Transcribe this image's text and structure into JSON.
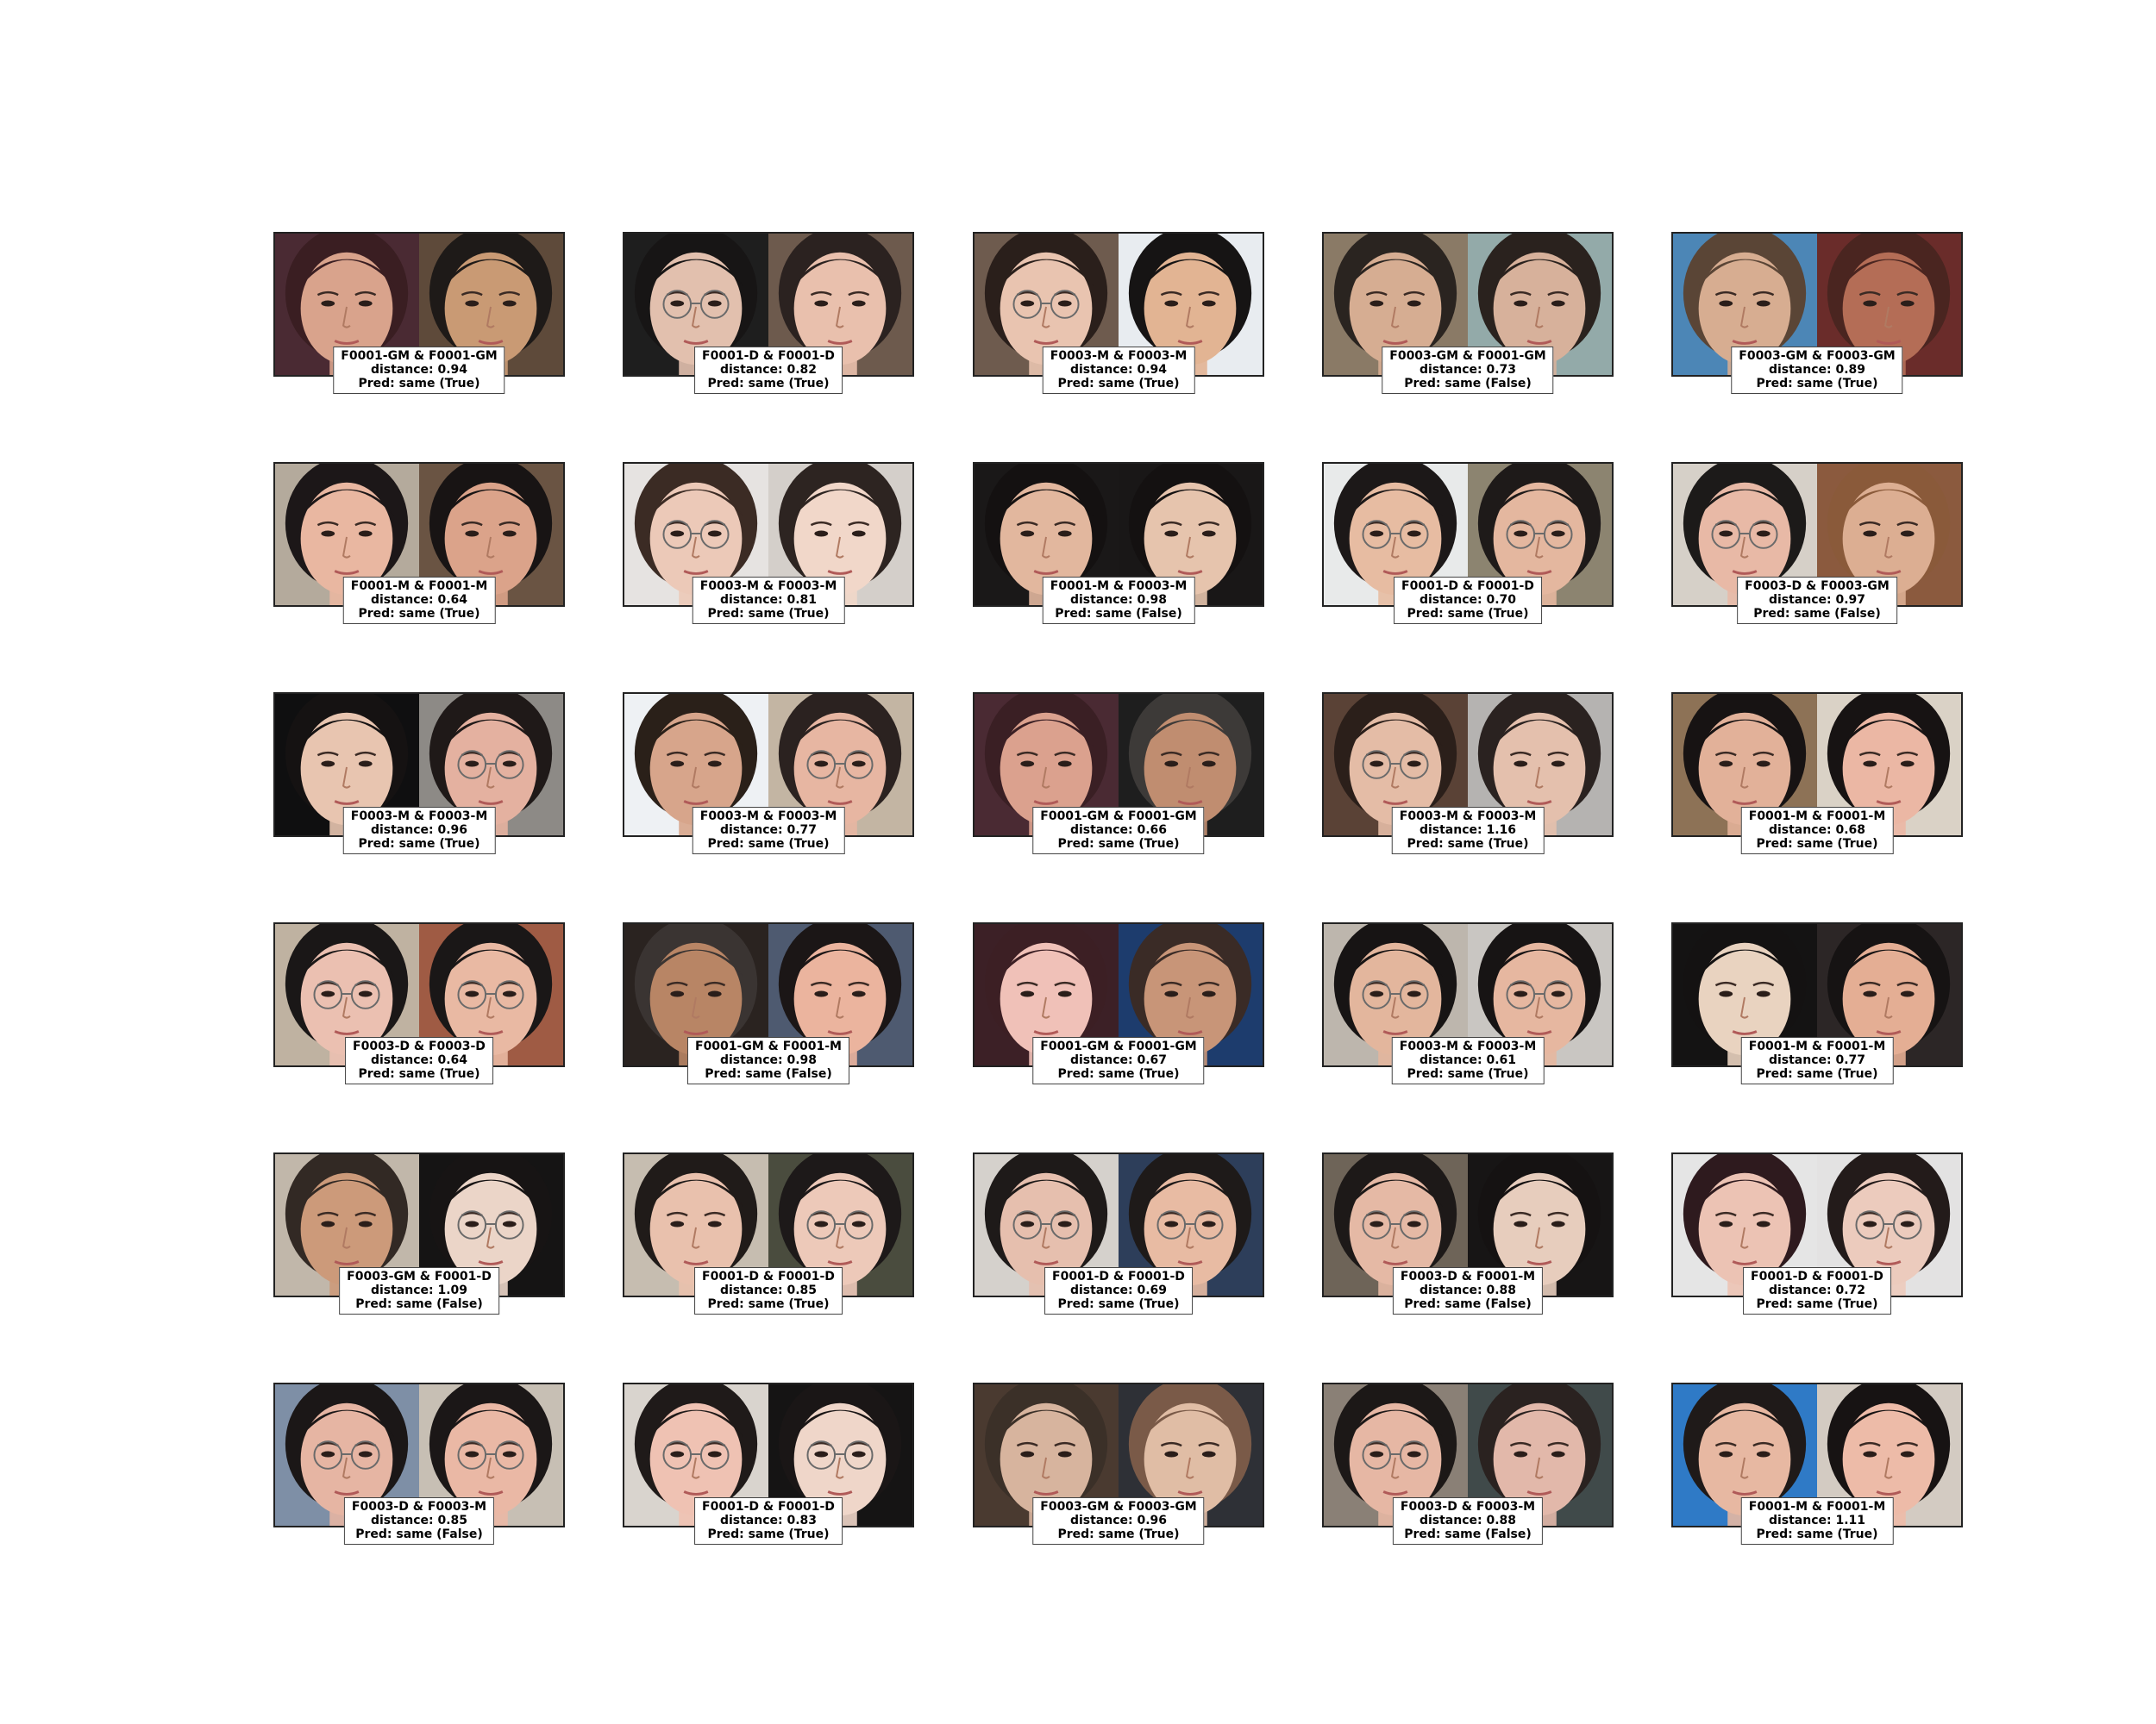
{
  "pairs": [
    {
      "pair": "F0001-GM & F0001-GM",
      "distance": "0.94",
      "pred": "same",
      "correct": "True",
      "faces": [
        {
          "bg": "#4a2a33",
          "skin": "#d9a38c",
          "hair": "#3a1e22"
        },
        {
          "bg": "#5e4a3a",
          "skin": "#c99a74",
          "hair": "#1e1a18"
        }
      ]
    },
    {
      "pair": "F0001-D & F0001-D",
      "distance": "0.82",
      "pred": "same",
      "correct": "True",
      "faces": [
        {
          "bg": "#1e1e1e",
          "skin": "#e2c0ae",
          "hair": "#171515",
          "glasses": true
        },
        {
          "bg": "#6d5a4d",
          "skin": "#e9c0ad",
          "hair": "#2b2220"
        }
      ]
    },
    {
      "pair": "F0003-M & F0003-M",
      "distance": "0.94",
      "pred": "same",
      "correct": "True",
      "faces": [
        {
          "bg": "#6e5b4e",
          "skin": "#e9c4b0",
          "hair": "#2a1f1b",
          "glasses": true
        },
        {
          "bg": "#e8ecf0",
          "skin": "#e2b493",
          "hair": "#161414"
        }
      ]
    },
    {
      "pair": "F0003-GM & F0001-GM",
      "distance": "0.73",
      "pred": "same",
      "correct": "False",
      "faces": [
        {
          "bg": "#8a7a66",
          "skin": "#d6ad92",
          "hair": "#2a2420"
        },
        {
          "bg": "#93aaa9",
          "skin": "#d7b19b",
          "hair": "#2a221e"
        }
      ]
    },
    {
      "pair": "F0003-GM & F0003-GM",
      "distance": "0.89",
      "pred": "same",
      "correct": "True",
      "faces": [
        {
          "bg": "#4c86b6",
          "skin": "#d7ad91",
          "hair": "#5a4536"
        },
        {
          "bg": "#6a2c2a",
          "skin": "#b46d56",
          "hair": "#4a2520"
        }
      ]
    },
    {
      "pair": "F0001-M & F0001-M",
      "distance": "0.64",
      "pred": "same",
      "correct": "True",
      "faces": [
        {
          "bg": "#b4aa9c",
          "skin": "#e9b7a1",
          "hair": "#1c1718"
        },
        {
          "bg": "#6a5443",
          "skin": "#dba38a",
          "hair": "#181414"
        }
      ]
    },
    {
      "pair": "F0003-M & F0003-M",
      "distance": "0.81",
      "pred": "same",
      "correct": "True",
      "faces": [
        {
          "bg": "#e6e3e1",
          "skin": "#ecc9b8",
          "hair": "#3b2b24",
          "glasses": true
        },
        {
          "bg": "#d4cfca",
          "skin": "#f1d7c9",
          "hair": "#2d2421"
        }
      ]
    },
    {
      "pair": "F0001-M & F0003-M",
      "distance": "0.98",
      "pred": "same",
      "correct": "False",
      "faces": [
        {
          "bg": "#1a1818",
          "skin": "#e2b79e",
          "hair": "#141111"
        },
        {
          "bg": "#191717",
          "skin": "#e6c4ad",
          "hair": "#141111"
        }
      ]
    },
    {
      "pair": "F0001-D & F0001-D",
      "distance": "0.70",
      "pred": "same",
      "correct": "True",
      "faces": [
        {
          "bg": "#e8eaea",
          "skin": "#e7bca2",
          "hair": "#1c1818",
          "glasses": true
        },
        {
          "bg": "#8c8470",
          "skin": "#e4b79f",
          "hair": "#1e1a19",
          "glasses": true
        }
      ]
    },
    {
      "pair": "F0003-D & F0003-GM",
      "distance": "0.97",
      "pred": "same",
      "correct": "False",
      "faces": [
        {
          "bg": "#d6d0c8",
          "skin": "#e8b9a6",
          "hair": "#1c1a19",
          "glasses": true
        },
        {
          "bg": "#8b5a3e",
          "skin": "#dcae92",
          "hair": "#8a5a3a"
        }
      ]
    },
    {
      "pair": "F0003-M & F0003-M",
      "distance": "0.96",
      "pred": "same",
      "correct": "True",
      "faces": [
        {
          "bg": "#0f0f10",
          "skin": "#e8c5b0",
          "hair": "#151212"
        },
        {
          "bg": "#8d8a86",
          "skin": "#e4b1a0",
          "hair": "#1f1918",
          "glasses": true
        }
      ]
    },
    {
      "pair": "F0003-M & F0003-M",
      "distance": "0.77",
      "pred": "same",
      "correct": "True",
      "faces": [
        {
          "bg": "#eef1f4",
          "skin": "#d7a58b",
          "hair": "#2a2019"
        },
        {
          "bg": "#c3b5a3",
          "skin": "#e7b6a2",
          "hair": "#2b2220",
          "glasses": true
        }
      ]
    },
    {
      "pair": "F0001-GM & F0001-GM",
      "distance": "0.66",
      "pred": "same",
      "correct": "True",
      "faces": [
        {
          "bg": "#4a2a33",
          "skin": "#dba18e",
          "hair": "#3a1f24"
        },
        {
          "bg": "#1e1e1e",
          "skin": "#c08d70",
          "hair": "#3d3a38"
        }
      ]
    },
    {
      "pair": "F0003-M & F0003-M",
      "distance": "1.16",
      "pred": "same",
      "correct": "True",
      "faces": [
        {
          "bg": "#5a4236",
          "skin": "#e4bca6",
          "hair": "#2b1f1a",
          "glasses": true
        },
        {
          "bg": "#b5b3b1",
          "skin": "#e4c0ad",
          "hair": "#2a2220"
        }
      ]
    },
    {
      "pair": "F0001-M & F0001-M",
      "distance": "0.68",
      "pred": "same",
      "correct": "True",
      "faces": [
        {
          "bg": "#8d7256",
          "skin": "#e2b199",
          "hair": "#171313"
        },
        {
          "bg": "#dad2c6",
          "skin": "#ebb7a4",
          "hair": "#171313"
        }
      ]
    },
    {
      "pair": "F0003-D & F0003-D",
      "distance": "0.64",
      "pred": "same",
      "correct": "True",
      "faces": [
        {
          "bg": "#bfb2a1",
          "skin": "#ebc0b1",
          "hair": "#1a1717",
          "glasses": true
        },
        {
          "bg": "#9f5b44",
          "skin": "#e9b9a3",
          "hair": "#1a1717",
          "glasses": true
        }
      ]
    },
    {
      "pair": "F0001-GM & F0001-M",
      "distance": "0.98",
      "pred": "same",
      "correct": "False",
      "faces": [
        {
          "bg": "#2a2320",
          "skin": "#b88565",
          "hair": "#3a3432"
        },
        {
          "bg": "#4e5a70",
          "skin": "#ebb49e",
          "hair": "#1b1616"
        }
      ]
    },
    {
      "pair": "F0001-GM & F0001-GM",
      "distance": "0.67",
      "pred": "same",
      "correct": "True",
      "faces": [
        {
          "bg": "#3c2026",
          "skin": "#f0c1b8",
          "hair": "#3c1f24"
        },
        {
          "bg": "#1d3c6d",
          "skin": "#c89578",
          "hair": "#3a2b26"
        }
      ]
    },
    {
      "pair": "F0003-M & F0003-M",
      "distance": "0.61",
      "pred": "same",
      "correct": "True",
      "faces": [
        {
          "bg": "#bdb6ad",
          "skin": "#e3b69d",
          "hair": "#171414",
          "glasses": true
        },
        {
          "bg": "#c9c6c2",
          "skin": "#e6b7a0",
          "hair": "#171414",
          "glasses": true
        }
      ]
    },
    {
      "pair": "F0001-M & F0001-M",
      "distance": "0.77",
      "pred": "same",
      "correct": "True",
      "faces": [
        {
          "bg": "#141313",
          "skin": "#e9d3c0",
          "hair": "#141212"
        },
        {
          "bg": "#2c2626",
          "skin": "#e4ae94",
          "hair": "#161313"
        }
      ]
    },
    {
      "pair": "F0003-GM & F0001-D",
      "distance": "1.09",
      "pred": "same",
      "correct": "False",
      "faces": [
        {
          "bg": "#c1b7aa",
          "skin": "#cc9a7a",
          "hair": "#322924"
        },
        {
          "bg": "#151414",
          "skin": "#ebd5c8",
          "hair": "#171414",
          "glasses": true
        }
      ]
    },
    {
      "pair": "F0001-D & F0001-D",
      "distance": "0.85",
      "pred": "same",
      "correct": "True",
      "faces": [
        {
          "bg": "#c6bdb0",
          "skin": "#e9c1ad",
          "hair": "#201b19"
        },
        {
          "bg": "#4a4c3e",
          "skin": "#edc9b9",
          "hair": "#1d1919",
          "glasses": true
        }
      ]
    },
    {
      "pair": "F0001-D & F0001-D",
      "distance": "0.69",
      "pred": "same",
      "correct": "True",
      "faces": [
        {
          "bg": "#d5d1cc",
          "skin": "#e6bfae",
          "hair": "#1e1a19",
          "glasses": true
        },
        {
          "bg": "#2d3e5a",
          "skin": "#e8bba3",
          "hair": "#1e1a19",
          "glasses": true
        }
      ]
    },
    {
      "pair": "F0003-D & F0001-M",
      "distance": "0.88",
      "pred": "same",
      "correct": "False",
      "faces": [
        {
          "bg": "#6e6458",
          "skin": "#e5b9a5",
          "hair": "#1d1918",
          "glasses": true
        },
        {
          "bg": "#171515",
          "skin": "#e7cdbd",
          "hair": "#151212"
        }
      ]
    },
    {
      "pair": "F0001-D & F0001-D",
      "distance": "0.72",
      "pred": "same",
      "correct": "True",
      "faces": [
        {
          "bg": "#e5e5e5",
          "skin": "#ecc3b4",
          "hair": "#2e1a1e"
        },
        {
          "bg": "#e3e2e2",
          "skin": "#eccbbd",
          "hair": "#231b1a",
          "glasses": true
        }
      ]
    },
    {
      "pair": "F0003-D & F0003-M",
      "distance": "0.85",
      "pred": "same",
      "correct": "False",
      "faces": [
        {
          "bg": "#7e8fa6",
          "skin": "#e6b5a3",
          "hair": "#1b1717",
          "glasses": true
        },
        {
          "bg": "#c7bfb4",
          "skin": "#eab8a5",
          "hair": "#1b1717",
          "glasses": true
        }
      ]
    },
    {
      "pair": "F0001-D & F0001-D",
      "distance": "0.83",
      "pred": "same",
      "correct": "True",
      "faces": [
        {
          "bg": "#d9d4ce",
          "skin": "#efc2b3",
          "hair": "#1f1a19",
          "glasses": true
        },
        {
          "bg": "#151414",
          "skin": "#efd6c9",
          "hair": "#1a1616",
          "glasses": true
        }
      ]
    },
    {
      "pair": "F0003-GM & F0003-GM",
      "distance": "0.96",
      "pred": "same",
      "correct": "True",
      "faces": [
        {
          "bg": "#4a3a30",
          "skin": "#d7b49e",
          "hair": "#3b3028"
        },
        {
          "bg": "#2e3036",
          "skin": "#e0bda5",
          "hair": "#7a5a48"
        }
      ]
    },
    {
      "pair": "F0003-D & F0003-M",
      "distance": "0.88",
      "pred": "same",
      "correct": "False",
      "faces": [
        {
          "bg": "#8a8076",
          "skin": "#e6b7a4",
          "hair": "#1c1817",
          "glasses": true
        },
        {
          "bg": "#404a4a",
          "skin": "#e2b8aa",
          "hair": "#2a2220"
        }
      ]
    },
    {
      "pair": "F0001-M & F0001-M",
      "distance": "1.11",
      "pred": "same",
      "correct": "True",
      "faces": [
        {
          "bg": "#2f7ac6",
          "skin": "#e7b8a2",
          "hair": "#1f1a19"
        },
        {
          "bg": "#d3cbc2",
          "skin": "#edbba8",
          "hair": "#171313"
        }
      ]
    }
  ]
}
